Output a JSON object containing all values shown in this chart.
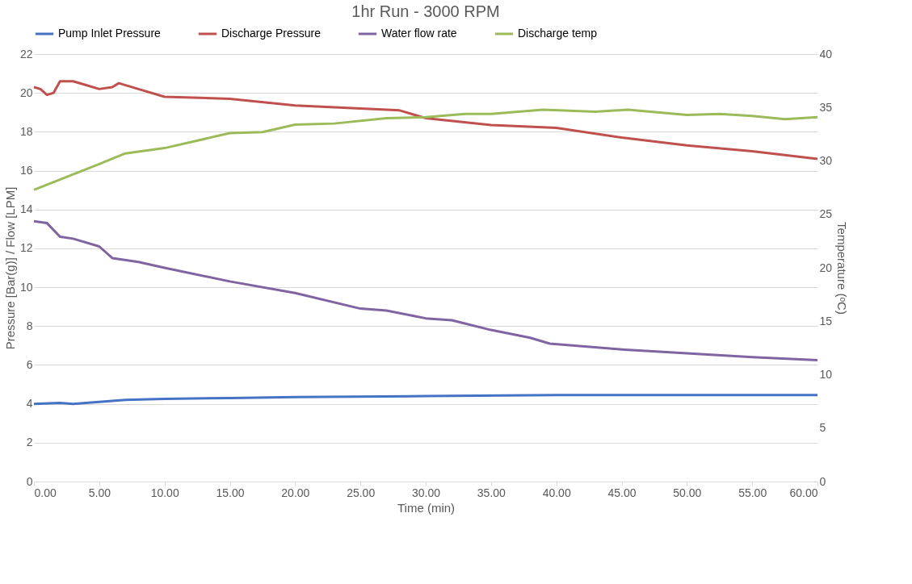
{
  "chart_data": {
    "type": "line",
    "title": "1hr Run - 3000 RPM",
    "xlabel": "Time (min)",
    "ylabel": "Pressure [Bar(g)]  / Flow [LPM]",
    "y2label": "Temperature (ᵒC)",
    "xlim": [
      0,
      60
    ],
    "xticks": [
      {
        "value": 0,
        "label": "0.00"
      },
      {
        "value": 5,
        "label": "5.00"
      },
      {
        "value": 10,
        "label": "10.00"
      },
      {
        "value": 15,
        "label": "15.00"
      },
      {
        "value": 20,
        "label": "20.00"
      },
      {
        "value": 25,
        "label": "25.00"
      },
      {
        "value": 30,
        "label": "30.00"
      },
      {
        "value": 35,
        "label": "35.00"
      },
      {
        "value": 40,
        "label": "40.00"
      },
      {
        "value": 45,
        "label": "45.00"
      },
      {
        "value": 50,
        "label": "50.00"
      },
      {
        "value": 55,
        "label": "55.00"
      },
      {
        "value": 60,
        "label": "60.00"
      }
    ],
    "ylim": [
      0,
      22
    ],
    "yticks": [
      0,
      2,
      4,
      6,
      8,
      10,
      12,
      14,
      16,
      18,
      20,
      22
    ],
    "y2lim": [
      0,
      40
    ],
    "y2ticks": [
      0,
      5,
      10,
      15,
      20,
      25,
      30,
      35,
      40
    ],
    "grid": "y",
    "legend": "top",
    "marker": "none",
    "line_style": "solid",
    "series": [
      {
        "name": "Pump Inlet Pressure",
        "color": "#4472c4",
        "x": [
          0,
          2,
          3,
          5,
          7,
          10,
          15,
          20,
          30,
          40,
          50,
          60
        ],
        "values": [
          4.0,
          4.05,
          4.0,
          4.1,
          4.2,
          4.25,
          4.3,
          4.35,
          4.4,
          4.45,
          4.45,
          4.45
        ]
      },
      {
        "name": "Discharge Pressure",
        "color": "#c0504d",
        "x": [
          0,
          0.5,
          1,
          1.5,
          2,
          3,
          4,
          5,
          6,
          6.5,
          8,
          10,
          15,
          20,
          25,
          28,
          30,
          35,
          40,
          45,
          50,
          55,
          60
        ],
        "values": [
          20.3,
          20.2,
          19.9,
          20.0,
          20.6,
          20.6,
          20.4,
          20.2,
          20.3,
          20.5,
          20.2,
          19.8,
          19.7,
          19.35,
          19.2,
          19.1,
          18.7,
          18.35,
          18.2,
          17.7,
          17.3,
          17.0,
          16.6
        ]
      },
      {
        "name": "Water flow rate",
        "color": "#8064a2",
        "x": [
          0,
          1,
          2,
          3,
          5,
          6,
          8,
          10,
          15,
          20,
          25,
          27,
          30,
          32,
          35,
          38,
          39.5,
          45,
          50,
          55,
          60
        ],
        "values": [
          13.4,
          13.3,
          12.6,
          12.5,
          12.1,
          11.5,
          11.3,
          11.0,
          10.3,
          9.7,
          8.9,
          8.8,
          8.4,
          8.3,
          7.8,
          7.4,
          7.1,
          6.8,
          6.6,
          6.4,
          6.25
        ]
      },
      {
        "name": "Discharge temp",
        "color": "#9bbb59",
        "axis": "y2",
        "x": [
          0,
          5,
          7,
          10,
          15,
          17.5,
          20,
          23,
          27,
          30,
          33,
          35,
          39,
          43,
          45.5,
          50,
          52.5,
          55,
          57.5,
          60
        ],
        "values": [
          27.3,
          29.7,
          30.7,
          31.2,
          32.6,
          32.7,
          33.4,
          33.5,
          34.0,
          34.1,
          34.4,
          34.4,
          34.8,
          34.6,
          34.8,
          34.3,
          34.4,
          34.2,
          33.9,
          34.1
        ]
      }
    ]
  }
}
